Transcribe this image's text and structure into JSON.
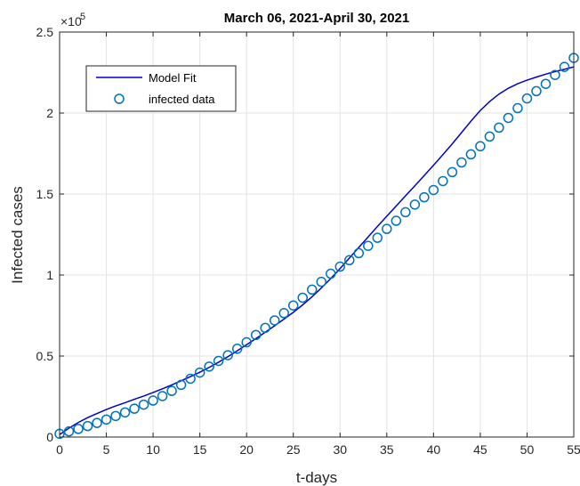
{
  "chart_data": {
    "type": "line",
    "title": "March 06,  2021-April 30, 2021",
    "xlabel": "t-days",
    "ylabel": "Infected cases",
    "xlim": [
      0,
      55
    ],
    "ylim": [
      0,
      250000
    ],
    "x_ticks": [
      0,
      5,
      10,
      15,
      20,
      25,
      30,
      35,
      40,
      45,
      50,
      55
    ],
    "y_ticks": [
      0,
      50000,
      100000,
      150000,
      200000,
      250000
    ],
    "y_tick_labels": [
      "0",
      "0.5",
      "1",
      "1.5",
      "2",
      "2.5"
    ],
    "y_exponent_base": "×10",
    "y_exponent_power": "5",
    "grid": true,
    "legend_position": "top-left",
    "colors": {
      "model_fit": "#0000cc",
      "infected_data": "#0072bd",
      "grid": "#e3e3e3",
      "axis": "#262626"
    },
    "series": [
      {
        "name": "Model Fit",
        "style": "line",
        "x": [
          0,
          1,
          2,
          3,
          4,
          5,
          6,
          7,
          8,
          9,
          10,
          11,
          12,
          13,
          14,
          15,
          16,
          17,
          18,
          19,
          20,
          21,
          22,
          23,
          24,
          25,
          26,
          27,
          28,
          29,
          30,
          31,
          32,
          33,
          34,
          35,
          36,
          37,
          38,
          39,
          40,
          41,
          42,
          43,
          44,
          45,
          46,
          47,
          48,
          49,
          50,
          51,
          52,
          53,
          54,
          55
        ],
        "values": [
          1500,
          5500,
          9000,
          12000,
          14500,
          17000,
          19200,
          21200,
          23300,
          25300,
          27500,
          29800,
          32200,
          34700,
          37300,
          40000,
          43000,
          46200,
          49600,
          53200,
          57000,
          60800,
          64700,
          68700,
          72800,
          77000,
          81600,
          86600,
          92000,
          97800,
          104000,
          110500,
          117000,
          123500,
          130000,
          136300,
          142600,
          148900,
          155100,
          161400,
          167800,
          174300,
          181000,
          188000,
          195000,
          201600,
          207100,
          211700,
          215300,
          218100,
          220300,
          222200,
          224000,
          225600,
          227000,
          228500
        ]
      },
      {
        "name": "infected data",
        "style": "scatter",
        "x": [
          0,
          1,
          2,
          3,
          4,
          5,
          6,
          7,
          8,
          9,
          10,
          11,
          12,
          13,
          14,
          15,
          16,
          17,
          18,
          19,
          20,
          21,
          22,
          23,
          24,
          25,
          26,
          27,
          28,
          29,
          30,
          31,
          32,
          33,
          34,
          35,
          36,
          37,
          38,
          39,
          40,
          41,
          42,
          43,
          44,
          45,
          46,
          47,
          48,
          49,
          50,
          51,
          52,
          53,
          54,
          55
        ],
        "values": [
          2000,
          3500,
          5000,
          6800,
          8700,
          10800,
          13000,
          15200,
          17500,
          20000,
          22500,
          25300,
          28500,
          32200,
          36000,
          39800,
          43500,
          47000,
          50500,
          54500,
          58500,
          63000,
          67400,
          72000,
          76500,
          81200,
          86000,
          91000,
          95800,
          100800,
          105200,
          109200,
          113500,
          118000,
          123000,
          128500,
          133500,
          138800,
          143500,
          148000,
          152500,
          158000,
          163500,
          169500,
          174500,
          179500,
          185500,
          191000,
          197000,
          203000,
          209000,
          213500,
          218000,
          223500,
          228500,
          234000
        ]
      }
    ]
  }
}
